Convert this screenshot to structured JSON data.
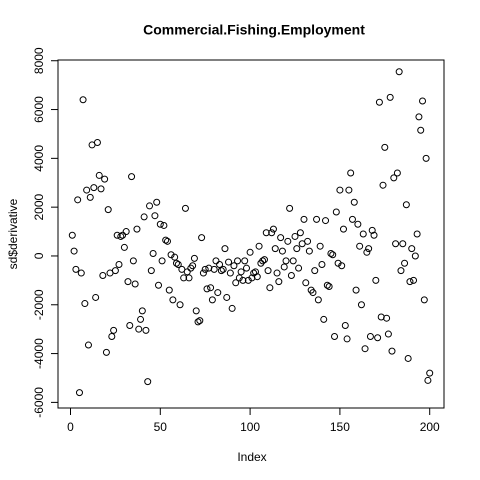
{
  "chart_data": {
    "type": "scatter",
    "title": "Commercial.Fishing.Employment",
    "x_label": "Index",
    "y_label": "sd$derivative",
    "values": [
      850,
      200,
      -550,
      2300,
      -5600,
      -700,
      6400,
      -1950,
      2700,
      -3650,
      2400,
      4550,
      2800,
      -1700,
      4650,
      3300,
      2750,
      -800,
      3150,
      -3950,
      1900,
      -700,
      -3300,
      -3050,
      -600,
      850,
      -350,
      800,
      850,
      350,
      1000,
      -1050,
      -2850,
      3250,
      -200,
      -1150,
      1100,
      -3000,
      -2600,
      -2250,
      1600,
      -3050,
      -5150,
      2050,
      -600,
      100,
      1650,
      2200,
      -1200,
      1300,
      -200,
      1250,
      650,
      600,
      -1400,
      50,
      -1800,
      -50,
      -300,
      -350,
      -2000,
      -550,
      -900,
      1950,
      -650,
      -900,
      -500,
      -400,
      -100,
      -2250,
      -2700,
      -2650,
      750,
      -700,
      -550,
      -1350,
      -500,
      -1300,
      -1800,
      -550,
      -200,
      -1500,
      -350,
      -600,
      -550,
      300,
      -1700,
      -250,
      -700,
      -2150,
      -400,
      -1100,
      -200,
      -900,
      -650,
      -1000,
      -200,
      -500,
      -1000,
      150,
      -900,
      -700,
      -650,
      -850,
      400,
      -300,
      -200,
      -150,
      950,
      -600,
      -1300,
      950,
      1100,
      300,
      -700,
      -1050,
      750,
      200,
      -450,
      -200,
      600,
      1950,
      -800,
      -200,
      800,
      300,
      -500,
      950,
      500,
      1500,
      -1100,
      600,
      200,
      -1400,
      -1500,
      -600,
      1500,
      -1800,
      400,
      -350,
      -2600,
      1450,
      -1200,
      -1250,
      100,
      50,
      -3300,
      1800,
      -300,
      2700,
      -400,
      1100,
      -2850,
      -3400,
      2700,
      3400,
      1500,
      2200,
      -1400,
      1300,
      400,
      -2000,
      900,
      -3800,
      150,
      300,
      -3300,
      1050,
      850,
      -1000,
      -3350,
      6300,
      -2500,
      2900,
      4450,
      -2550,
      -3200,
      6500,
      -3900,
      3200,
      500,
      3400,
      7550,
      -600,
      500,
      -300,
      2100,
      -4200,
      -1050,
      300,
      -1000,
      0,
      900,
      5700,
      5150,
      6350,
      -1800,
      4000,
      -5100,
      -4800
    ],
    "color": "#000000",
    "xlim": [
      -6.96,
      207.96
    ],
    "xticks": [
      0,
      50,
      100,
      150,
      200
    ],
    "ylim": [
      -6230,
      8030
    ],
    "yticks": [
      -6000,
      -4000,
      -2000,
      0,
      2000,
      4000,
      6000,
      8000
    ]
  }
}
